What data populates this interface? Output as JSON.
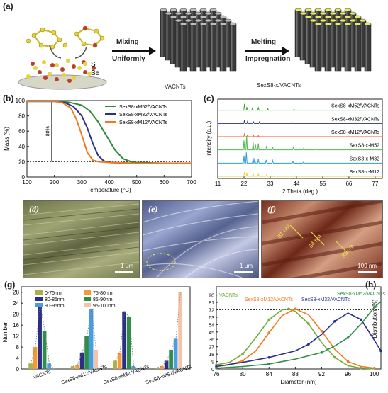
{
  "panel_a": {
    "label": "(a)",
    "legend_s": "S",
    "legend_se": "Se",
    "step1_top": "Mixing",
    "step1_bottom": "Uniformly",
    "step2_top": "Melting",
    "step2_bottom": "Impregnation",
    "caption_1": "VACNTs",
    "caption_2": "SexS8-x/VACNTs",
    "colors": {
      "s": "#e6d23a",
      "se": "#b7412a",
      "tube": "#3a3a3a",
      "cap": "#eaea6a"
    }
  },
  "panel_b": {
    "label": "(b)",
    "annotation": "80%"
  },
  "panel_c": {
    "label": "(c)",
    "curve_labels": [
      "SexS8-xM52/VACNTs",
      "SexS8-xM32/VACNTs",
      "SexS8-xM12/VACNTs",
      "SexS8-x-M52",
      "SexS8-x-M32",
      "SexS8-x-M12"
    ]
  },
  "panel_d": {
    "label": "(d)",
    "scale": "1 μm"
  },
  "panel_e": {
    "label": "(e)",
    "scale": "1 μm"
  },
  "panel_f": {
    "label": "(f)",
    "scale": "100 nm",
    "annotations": [
      "81 nm",
      "84 nm",
      "85 nm"
    ]
  },
  "panel_g": {
    "label": "(g)"
  },
  "panel_h": {
    "label": "(h)",
    "hline_label": "72"
  },
  "chart_data": [
    {
      "id": "b",
      "type": "line",
      "xlabel": "Temperature (°C)",
      "ylabel": "Mass (%)",
      "xlim": [
        100,
        700
      ],
      "ylim": [
        0,
        100
      ],
      "xticks": [
        100,
        200,
        300,
        400,
        500,
        600,
        700
      ],
      "yticks": [
        0,
        20,
        40,
        60,
        80,
        100
      ],
      "legend_position": "top-right",
      "series": [
        {
          "name": "SexS8-xM52/VACNTs",
          "color": "#2e8b3a",
          "x": [
            100,
            200,
            250,
            300,
            330,
            360,
            390,
            420,
            450,
            480,
            500,
            600,
            700
          ],
          "y": [
            99,
            99,
            98,
            94,
            86,
            72,
            54,
            36,
            24,
            20,
            19,
            18,
            18
          ]
        },
        {
          "name": "SexS8-xM32/VACNTs",
          "color": "#2a2f8a",
          "x": [
            100,
            200,
            240,
            270,
            300,
            320,
            340,
            360,
            380,
            400,
            500,
            600,
            700
          ],
          "y": [
            99,
            99,
            97,
            92,
            80,
            64,
            44,
            28,
            21,
            19,
            18,
            18,
            18
          ]
        },
        {
          "name": "SexS8-xM12/VACNTs",
          "color": "#f07a22",
          "x": [
            100,
            200,
            230,
            260,
            280,
            300,
            320,
            340,
            360,
            400,
            500,
            600,
            700
          ],
          "y": [
            99,
            99,
            97,
            90,
            76,
            55,
            32,
            22,
            20,
            19,
            18,
            18,
            18
          ]
        }
      ]
    },
    {
      "id": "c",
      "type": "line",
      "xlabel": "2 Theta (deg.)",
      "ylabel": "Intensity (a.u.)",
      "xlim": [
        11,
        80
      ],
      "xticks": [
        11,
        22,
        33,
        44,
        55,
        66,
        77
      ],
      "series": [
        {
          "name": "SexS8-xM52/VACNTs",
          "color": "#3aa63a",
          "peaks": [
            [
              22.2,
              12
            ],
            [
              23.2,
              6
            ],
            [
              25.5,
              4
            ],
            [
              28,
              5
            ],
            [
              32,
              3
            ],
            [
              43,
              2
            ]
          ]
        },
        {
          "name": "SexS8-xM32/VACNTs",
          "color": "#2a2f8a",
          "peaks": [
            [
              22.2,
              6
            ],
            [
              23.5,
              4
            ],
            [
              26,
              3
            ],
            [
              28.5,
              3
            ],
            [
              42,
              2
            ]
          ]
        },
        {
          "name": "SexS8-xM12/VACNTs",
          "color": "#f05a22",
          "peaks": [
            [
              22.2,
              5
            ],
            [
              23.5,
              3
            ],
            [
              26,
              2
            ],
            [
              28,
              2
            ]
          ]
        },
        {
          "name": "SexS8-x-M52",
          "color": "#4fba4f",
          "peaks": [
            [
              22,
              18
            ],
            [
              23.1,
              26
            ],
            [
              25.8,
              14
            ],
            [
              26.8,
              10
            ],
            [
              28,
              12
            ],
            [
              31.5,
              8
            ],
            [
              34,
              6
            ],
            [
              42.7,
              5
            ],
            [
              47,
              3
            ],
            [
              52,
              2
            ]
          ]
        },
        {
          "name": "SexS8-x-M32",
          "color": "#2f9fd8",
          "peaks": [
            [
              22,
              14
            ],
            [
              23,
              20
            ],
            [
              25.8,
              10
            ],
            [
              26.5,
              9
            ],
            [
              28,
              8
            ],
            [
              31.3,
              6
            ],
            [
              34,
              5
            ],
            [
              42.5,
              3
            ],
            [
              47,
              2
            ]
          ]
        },
        {
          "name": "SexS8-x-M12",
          "color": "#e8d43c",
          "peaks": [
            [
              22.2,
              8
            ],
            [
              23.2,
              6
            ],
            [
              25.8,
              5
            ],
            [
              28,
              4
            ],
            [
              31.5,
              3
            ],
            [
              43,
              2
            ]
          ]
        }
      ]
    },
    {
      "id": "g",
      "type": "bar",
      "ylabel": "Number",
      "ylim": [
        0,
        30
      ],
      "yticks": [
        0,
        4,
        8,
        12,
        16,
        20,
        24,
        28
      ],
      "categories": [
        "VACNTs",
        "SexS8-xM12/VACNTs",
        "SexS8-xM32/VACNTs",
        "SexS8-xM52/VACNTs"
      ],
      "legend_position": "top",
      "series": [
        {
          "name": "0-75nm",
          "color": "#a9b04c",
          "values": [
            2,
            1,
            3,
            0.5
          ]
        },
        {
          "name": "75-80nm",
          "color": "#f59a3a",
          "values": [
            8,
            1.5,
            6,
            1
          ]
        },
        {
          "name": "80-85nm",
          "color": "#2b2d86",
          "values": [
            24,
            6,
            21,
            3
          ]
        },
        {
          "name": "85-90nm",
          "color": "#2e8e48",
          "values": [
            14,
            12,
            19,
            7
          ]
        },
        {
          "name": "90-95nm",
          "color": "#4a9de0",
          "values": [
            2,
            22,
            1,
            11
          ]
        },
        {
          "name": "95-100nm",
          "color": "#f7c3a6",
          "values": [
            0,
            7,
            0,
            28
          ]
        }
      ]
    },
    {
      "id": "h",
      "type": "line",
      "xlabel": "Diameter (nm)",
      "ylabel": "Distribution (%)",
      "xlim": [
        76,
        101
      ],
      "ylim": [
        0,
        100
      ],
      "xticks": [
        76,
        80,
        84,
        88,
        92,
        96,
        100
      ],
      "yticks": [
        0,
        9,
        18,
        27,
        36,
        45,
        54,
        63,
        72,
        81,
        90
      ],
      "series": [
        {
          "name": "VACNTs",
          "color": "#6fae35",
          "x": [
            76,
            78,
            80,
            82,
            84,
            86,
            87,
            88,
            90,
            92,
            94,
            96,
            98,
            100
          ],
          "y": [
            5,
            8,
            18,
            38,
            60,
            72,
            73,
            70,
            55,
            32,
            14,
            4,
            1,
            0
          ]
        },
        {
          "name": "SexS8-xM12/VACNTs",
          "color": "#f07a22",
          "x": [
            76,
            78,
            80,
            82,
            84,
            86,
            88,
            90,
            92,
            94,
            96,
            98,
            100
          ],
          "y": [
            3,
            5,
            10,
            22,
            44,
            65,
            73,
            66,
            46,
            24,
            9,
            3,
            1
          ]
        },
        {
          "name": "SexS8-xM32/VACNTs",
          "color": "#2a2f8a",
          "x": [
            76,
            80,
            84,
            88,
            90,
            92,
            94,
            96,
            98,
            100,
            101
          ],
          "y": [
            3,
            8,
            14,
            22,
            30,
            42,
            58,
            68,
            60,
            35,
            22
          ]
        },
        {
          "name": "SexS8-xM52/VACNTs",
          "color": "#2e8e48",
          "x": [
            76,
            80,
            84,
            88,
            92,
            94,
            96,
            98,
            100,
            101
          ],
          "y": [
            1,
            3,
            6,
            12,
            20,
            28,
            38,
            55,
            75,
            82
          ]
        }
      ]
    }
  ]
}
